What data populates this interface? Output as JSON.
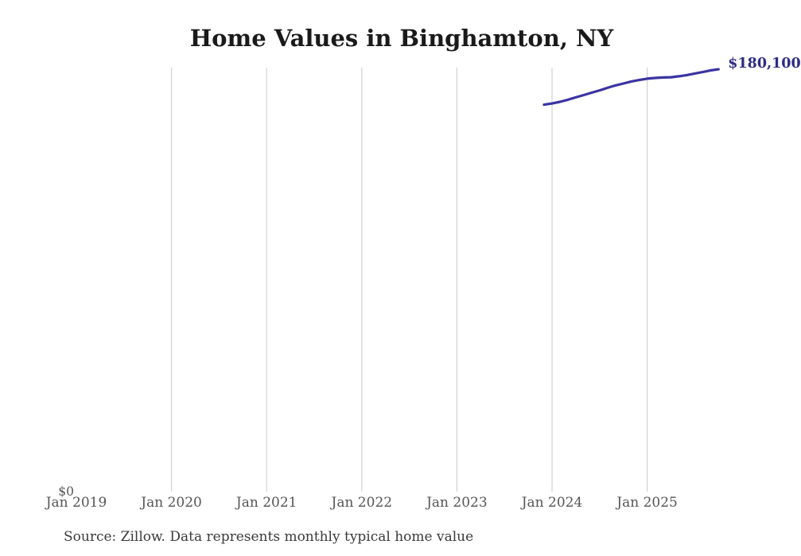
{
  "chart_data": {
    "type": "line",
    "title": "Home Values in Binghamton, NY",
    "source_note": "Source: Zillow. Data represents monthly typical home value",
    "series": [
      {
        "name": "Typical home value",
        "months": [
          "2023-12",
          "2024-01",
          "2024-02",
          "2024-03",
          "2024-04",
          "2024-05",
          "2024-06",
          "2024-07",
          "2024-08",
          "2024-09",
          "2024-10",
          "2024-11",
          "2024-12",
          "2025-01",
          "2025-02",
          "2025-03",
          "2025-04",
          "2025-05",
          "2025-06",
          "2025-07",
          "2025-08",
          "2025-09",
          "2025-10"
        ],
        "values": [
          165000,
          165500,
          166200,
          167100,
          168100,
          169100,
          170100,
          171100,
          172200,
          173200,
          174000,
          174900,
          175500,
          176100,
          176400,
          176600,
          176700,
          177100,
          177600,
          178300,
          178900,
          179600,
          180100
        ]
      }
    ],
    "end_label": "$180,100",
    "x_ticks": [
      {
        "label": "Jan 2019",
        "month": "2019-01",
        "gridline": false
      },
      {
        "label": "Jan 2020",
        "month": "2020-01",
        "gridline": true
      },
      {
        "label": "Jan 2021",
        "month": "2021-01",
        "gridline": true
      },
      {
        "label": "Jan 2022",
        "month": "2022-01",
        "gridline": true
      },
      {
        "label": "Jan 2023",
        "month": "2023-01",
        "gridline": true
      },
      {
        "label": "Jan 2024",
        "month": "2024-01",
        "gridline": true
      },
      {
        "label": "Jan 2025",
        "month": "2025-01",
        "gridline": true
      }
    ],
    "y_ticks": [
      {
        "label": "$0",
        "value": 0
      }
    ],
    "ylim": [
      0,
      180800
    ],
    "grid": "vertical-only",
    "legend": "none",
    "colors": {
      "line": "#3a34a3",
      "end_label": "#2d2b85",
      "gridline": "#d2d2d2",
      "tick_label": "#555555",
      "title": "#1a1a1a",
      "source": "#3a3a3a"
    }
  }
}
